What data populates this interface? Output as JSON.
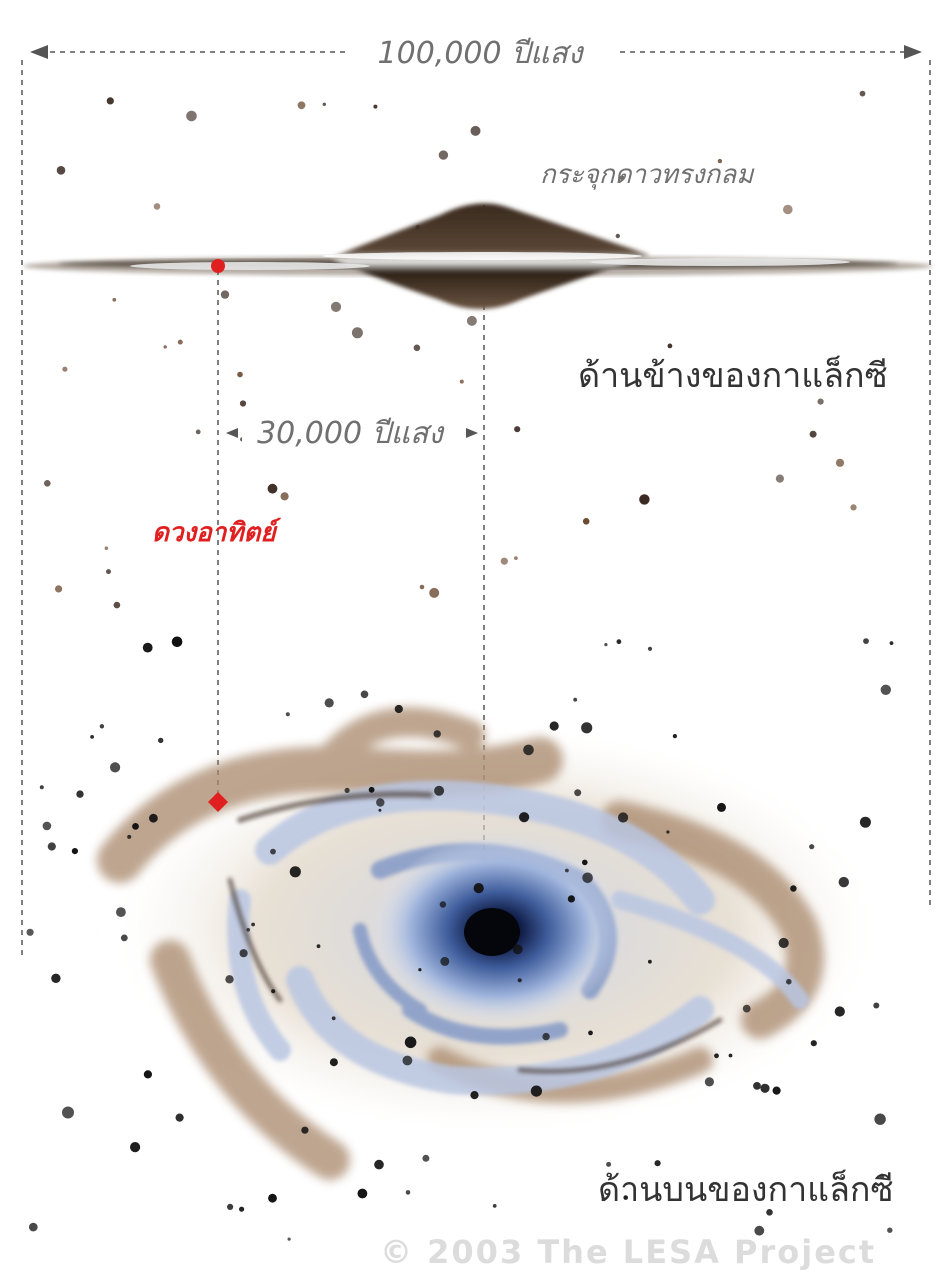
{
  "labels": {
    "galaxy_diameter": "100,000 ปีแสง",
    "sun_distance": "30,000 ปีแสง",
    "bulge": "กระจุกดาวทรงกลม",
    "side_view": "ด้านข้างของกาแล็กซี",
    "top_view": "ด้านบนของกาแล็กซี",
    "sun": "ดวงอาทิตย์",
    "copyright": "© 2003  The LESA Project"
  },
  "colors": {
    "sun_marker": "#e02020",
    "guide_lines": "#555555",
    "core_blue": "#1a2a5a",
    "arm_blue": "#8fa6d0",
    "dust_brown": "#a8876a"
  }
}
